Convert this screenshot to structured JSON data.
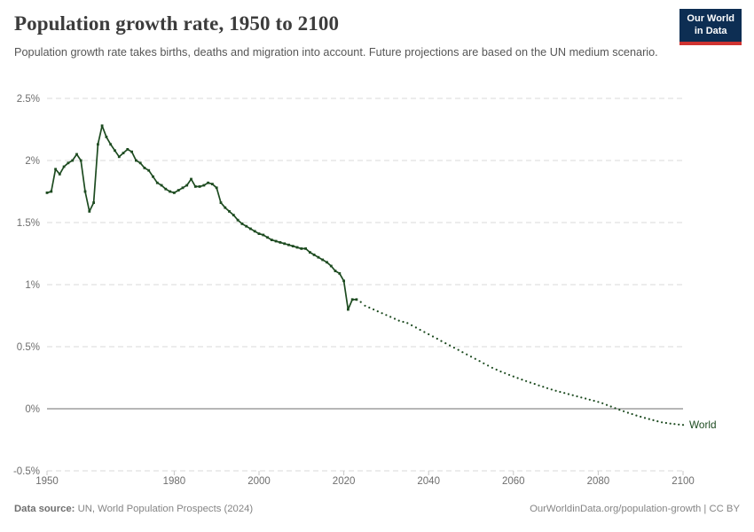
{
  "header": {
    "title": "Population growth rate, 1950 to 2100",
    "subtitle": "Population growth rate takes births, deaths and migration into account. Future projections are based on the UN medium scenario.",
    "logo": {
      "line1": "Our World",
      "line2": "in Data",
      "bg_color": "#0d2e53",
      "accent_color": "#cf3331"
    }
  },
  "chart_data": {
    "type": "line",
    "title": "Population growth rate, 1950 to 2100",
    "series_label": "World",
    "line_color": "#1d4b20",
    "grid_color": "#dadada",
    "zero_line_color": "#ababab",
    "axis_text_color": "#6e6e6e",
    "xlim": [
      1950,
      2100
    ],
    "ylim": [
      -0.5,
      2.5
    ],
    "x_ticks": [
      1950,
      1980,
      2000,
      2020,
      2040,
      2060,
      2080,
      2100
    ],
    "y_ticks": [
      "2.5%",
      "2%",
      "1.5%",
      "1%",
      "0.5%",
      "0%",
      "-0.5%"
    ],
    "y_tick_values": [
      2.5,
      2,
      1.5,
      1,
      0.5,
      0,
      -0.5
    ],
    "historical": {
      "start_year": 1950,
      "values": [
        1.74,
        1.75,
        1.93,
        1.89,
        1.95,
        1.98,
        2.0,
        2.05,
        2.0,
        1.75,
        1.59,
        1.66,
        2.13,
        2.28,
        2.19,
        2.13,
        2.08,
        2.03,
        2.06,
        2.09,
        2.07,
        2.0,
        1.98,
        1.94,
        1.92,
        1.87,
        1.82,
        1.8,
        1.77,
        1.75,
        1.74,
        1.76,
        1.78,
        1.8,
        1.85,
        1.79,
        1.79,
        1.8,
        1.82,
        1.81,
        1.78,
        1.66,
        1.62,
        1.59,
        1.56,
        1.52,
        1.49,
        1.47,
        1.45,
        1.43,
        1.41,
        1.4,
        1.38,
        1.36,
        1.35,
        1.34,
        1.33,
        1.32,
        1.31,
        1.3,
        1.29,
        1.29,
        1.26,
        1.24,
        1.22,
        1.2,
        1.18,
        1.15,
        1.11,
        1.09,
        1.03,
        0.8,
        0.88,
        0.88
      ]
    },
    "projection": {
      "start_year": 2024,
      "values": [
        0.86,
        0.83,
        0.815,
        0.8,
        0.785,
        0.77,
        0.755,
        0.74,
        0.725,
        0.71,
        0.7,
        0.69,
        0.672,
        0.654,
        0.636,
        0.618,
        0.6,
        0.582,
        0.564,
        0.546,
        0.528,
        0.51,
        0.492,
        0.474,
        0.456,
        0.438,
        0.42,
        0.402,
        0.384,
        0.366,
        0.348,
        0.33,
        0.315,
        0.3,
        0.287,
        0.273,
        0.26,
        0.247,
        0.235,
        0.223,
        0.211,
        0.2,
        0.188,
        0.177,
        0.166,
        0.155,
        0.145,
        0.136,
        0.127,
        0.118,
        0.109,
        0.1,
        0.091,
        0.082,
        0.073,
        0.064,
        0.055,
        0.044,
        0.031,
        0.018,
        0.005,
        -0.008,
        -0.02,
        -0.032,
        -0.043,
        -0.054,
        -0.064,
        -0.074,
        -0.083,
        -0.092,
        -0.101,
        -0.109,
        -0.114,
        -0.119,
        -0.123,
        -0.127,
        -0.13
      ]
    }
  },
  "footer": {
    "source_label": "Data source:",
    "source_text": " UN, World Population Prospects (2024)",
    "link_text": "OurWorldinData.org/population-growth | CC BY"
  }
}
